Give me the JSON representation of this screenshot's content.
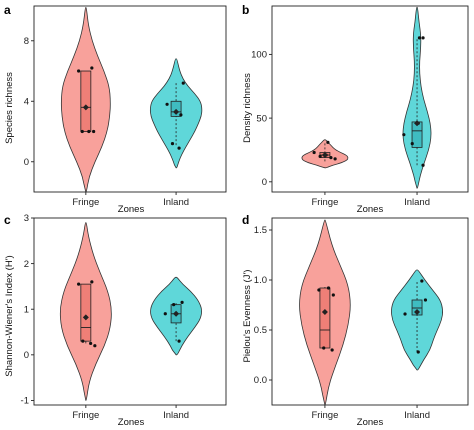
{
  "colors": {
    "fringe": "#f8a19b",
    "inland": "#5fd7d9",
    "outline": "#333333",
    "box_fill_fringe": "#ef7f77",
    "box_fill_inland": "#3fbcc1"
  },
  "chart_data": [
    {
      "type": "violin",
      "panel": "a",
      "xlabel": "Zones",
      "ylabel": "Species richness",
      "categories": [
        "Fringe",
        "Inland"
      ],
      "yticks": [
        0,
        4,
        8
      ],
      "ylim": [
        -2,
        10.3
      ],
      "groups": [
        {
          "name": "Fringe",
          "range": [
            -2,
            10.2
          ],
          "density": [
            [
              -2,
              0.02
            ],
            [
              -1,
              0.12
            ],
            [
              0,
              0.35
            ],
            [
              1,
              0.62
            ],
            [
              2,
              0.82
            ],
            [
              3,
              0.92
            ],
            [
              4,
              0.95
            ],
            [
              5,
              0.9
            ],
            [
              6,
              0.7
            ],
            [
              7,
              0.45
            ],
            [
              8,
              0.24
            ],
            [
              9,
              0.1
            ],
            [
              10.2,
              0.02
            ]
          ],
          "box": {
            "q1": 2,
            "median": 3.6,
            "q3": 6,
            "whisker_low": 2,
            "whisker_high": 6
          },
          "mean": 3.6,
          "points": [
            [
              -0.06,
              2
            ],
            [
              0.05,
              2
            ],
            [
              0.13,
              2
            ],
            [
              -0.12,
              6
            ],
            [
              0.1,
              6.2
            ],
            [
              0.0,
              3.6
            ]
          ]
        },
        {
          "name": "Inland",
          "range": [
            -0.4,
            6.8
          ],
          "density": [
            [
              -0.4,
              0.03
            ],
            [
              0,
              0.1
            ],
            [
              0.5,
              0.22
            ],
            [
              1,
              0.38
            ],
            [
              1.5,
              0.55
            ],
            [
              2,
              0.72
            ],
            [
              2.5,
              0.85
            ],
            [
              3,
              0.97
            ],
            [
              3.5,
              1.0
            ],
            [
              4,
              0.94
            ],
            [
              4.5,
              0.72
            ],
            [
              5,
              0.45
            ],
            [
              5.5,
              0.26
            ],
            [
              6,
              0.14
            ],
            [
              6.8,
              0.03
            ]
          ],
          "box": {
            "q1": 3.0,
            "median": 3.3,
            "q3": 4,
            "whisker_low": 1.1,
            "whisker_high": 5.2
          },
          "mean": 3.3,
          "points": [
            [
              -0.15,
              3.8
            ],
            [
              -0.06,
              1.2
            ],
            [
              0.05,
              0.9
            ],
            [
              0.12,
              5.2
            ],
            [
              0.0,
              3.3
            ],
            [
              0.08,
              3.1
            ]
          ]
        }
      ]
    },
    {
      "type": "violin",
      "panel": "b",
      "xlabel": "Zones",
      "ylabel": "Density richness",
      "categories": [
        "Fringe",
        "Inland"
      ],
      "yticks": [
        0,
        50,
        100
      ],
      "ylim": [
        -8,
        138
      ],
      "groups": [
        {
          "name": "Fringe",
          "range": [
            11,
            33
          ],
          "density": [
            [
              11,
              0.05
            ],
            [
              13,
              0.3
            ],
            [
              15,
              0.65
            ],
            [
              17,
              0.85
            ],
            [
              19,
              0.9
            ],
            [
              21,
              0.82
            ],
            [
              23,
              0.6
            ],
            [
              25,
              0.42
            ],
            [
              27,
              0.3
            ],
            [
              29,
              0.22
            ],
            [
              31,
              0.12
            ],
            [
              33,
              0.03
            ]
          ],
          "box": {
            "q1": 19,
            "median": 21,
            "q3": 23,
            "whisker_low": 16,
            "whisker_high": 31
          },
          "mean": 21,
          "points": [
            [
              -0.18,
              23
            ],
            [
              -0.08,
              20
            ],
            [
              0.02,
              21
            ],
            [
              0.1,
              19
            ],
            [
              0.17,
              18
            ],
            [
              0.05,
              31
            ]
          ]
        },
        {
          "name": "Inland",
          "range": [
            -5,
            137
          ],
          "density": [
            [
              -5,
              0.02
            ],
            [
              5,
              0.12
            ],
            [
              15,
              0.28
            ],
            [
              25,
              0.45
            ],
            [
              35,
              0.55
            ],
            [
              45,
              0.52
            ],
            [
              55,
              0.4
            ],
            [
              65,
              0.25
            ],
            [
              75,
              0.15
            ],
            [
              85,
              0.1
            ],
            [
              95,
              0.1
            ],
            [
              105,
              0.14
            ],
            [
              115,
              0.15
            ],
            [
              125,
              0.08
            ],
            [
              137,
              0.02
            ]
          ],
          "box": {
            "q1": 27,
            "median": 40,
            "q3": 47,
            "whisker_low": 13,
            "whisker_high": 113
          },
          "mean": 46,
          "points": [
            [
              -0.22,
              37
            ],
            [
              -0.08,
              30
            ],
            [
              0.02,
              46
            ],
            [
              0.1,
              13
            ],
            [
              0.04,
              113
            ],
            [
              0.1,
              113
            ]
          ]
        }
      ]
    },
    {
      "type": "violin",
      "panel": "c",
      "xlabel": "Zones",
      "ylabel": "Shannon-Wiener's Index (H')",
      "categories": [
        "Fringe",
        "Inland"
      ],
      "yticks": [
        -1,
        0,
        1,
        2,
        3
      ],
      "ylim": [
        -1.1,
        3.0
      ],
      "groups": [
        {
          "name": "Fringe",
          "range": [
            -1.0,
            2.9
          ],
          "density": [
            [
              -1.0,
              0.02
            ],
            [
              -0.6,
              0.12
            ],
            [
              -0.2,
              0.38
            ],
            [
              0.2,
              0.72
            ],
            [
              0.6,
              0.95
            ],
            [
              1.0,
              1.0
            ],
            [
              1.4,
              0.85
            ],
            [
              1.8,
              0.55
            ],
            [
              2.2,
              0.28
            ],
            [
              2.6,
              0.1
            ],
            [
              2.9,
              0.02
            ]
          ],
          "box": {
            "q1": 0.3,
            "median": 0.6,
            "q3": 1.55,
            "whisker_low": 0.25,
            "whisker_high": 1.55
          },
          "mean": 0.82,
          "points": [
            [
              -0.12,
              1.55
            ],
            [
              0.1,
              1.6
            ],
            [
              -0.05,
              0.3
            ],
            [
              0.08,
              0.25
            ],
            [
              0.15,
              0.2
            ],
            [
              0.0,
              0.82
            ]
          ]
        },
        {
          "name": "Inland",
          "range": [
            0.0,
            1.7
          ],
          "density": [
            [
              0.0,
              0.05
            ],
            [
              0.2,
              0.22
            ],
            [
              0.4,
              0.45
            ],
            [
              0.6,
              0.72
            ],
            [
              0.8,
              0.95
            ],
            [
              1.0,
              1.0
            ],
            [
              1.2,
              0.85
            ],
            [
              1.4,
              0.55
            ],
            [
              1.55,
              0.25
            ],
            [
              1.7,
              0.04
            ]
          ],
          "box": {
            "q1": 0.7,
            "median": 0.9,
            "q3": 1.1,
            "whisker_low": 0.3,
            "whisker_high": 1.15
          },
          "mean": 0.9,
          "points": [
            [
              -0.18,
              0.9
            ],
            [
              0.05,
              0.3
            ],
            [
              0.1,
              1.15
            ],
            [
              -0.04,
              1.1
            ],
            [
              0.0,
              0.9
            ]
          ]
        }
      ]
    },
    {
      "type": "violin",
      "panel": "d",
      "xlabel": "Zones",
      "ylabel": "Pielou's Evenness (J')",
      "categories": [
        "Fringe",
        "Inland"
      ],
      "yticks": [
        0.0,
        0.5,
        1.0,
        1.5
      ],
      "ylim": [
        -0.25,
        1.62
      ],
      "groups": [
        {
          "name": "Fringe",
          "range": [
            -0.25,
            1.6
          ],
          "density": [
            [
              -0.25,
              0.02
            ],
            [
              -0.05,
              0.15
            ],
            [
              0.15,
              0.42
            ],
            [
              0.35,
              0.7
            ],
            [
              0.55,
              0.9
            ],
            [
              0.75,
              1.0
            ],
            [
              0.95,
              0.9
            ],
            [
              1.15,
              0.58
            ],
            [
              1.35,
              0.26
            ],
            [
              1.6,
              0.02
            ]
          ],
          "box": {
            "q1": 0.32,
            "median": 0.5,
            "q3": 0.92,
            "whisker_low": 0.32,
            "whisker_high": 0.93
          },
          "mean": 0.68,
          "points": [
            [
              -0.1,
              0.9
            ],
            [
              0.06,
              0.92
            ],
            [
              -0.02,
              0.32
            ],
            [
              0.12,
              0.3
            ],
            [
              0.14,
              0.85
            ],
            [
              0.0,
              0.68
            ]
          ]
        },
        {
          "name": "Inland",
          "range": [
            0.1,
            1.1
          ],
          "density": [
            [
              0.1,
              0.04
            ],
            [
              0.2,
              0.25
            ],
            [
              0.3,
              0.5
            ],
            [
              0.4,
              0.62
            ],
            [
              0.5,
              0.78
            ],
            [
              0.6,
              0.95
            ],
            [
              0.7,
              1.0
            ],
            [
              0.8,
              0.9
            ],
            [
              0.9,
              0.6
            ],
            [
              1.0,
              0.3
            ],
            [
              1.1,
              0.04
            ]
          ],
          "box": {
            "q1": 0.65,
            "median": 0.72,
            "q3": 0.8,
            "whisker_low": 0.28,
            "whisker_high": 0.99
          },
          "mean": 0.68,
          "points": [
            [
              -0.2,
              0.66
            ],
            [
              0.02,
              0.28
            ],
            [
              0.08,
              0.99
            ],
            [
              0.14,
              0.8
            ],
            [
              0.0,
              0.68
            ]
          ]
        }
      ]
    }
  ]
}
